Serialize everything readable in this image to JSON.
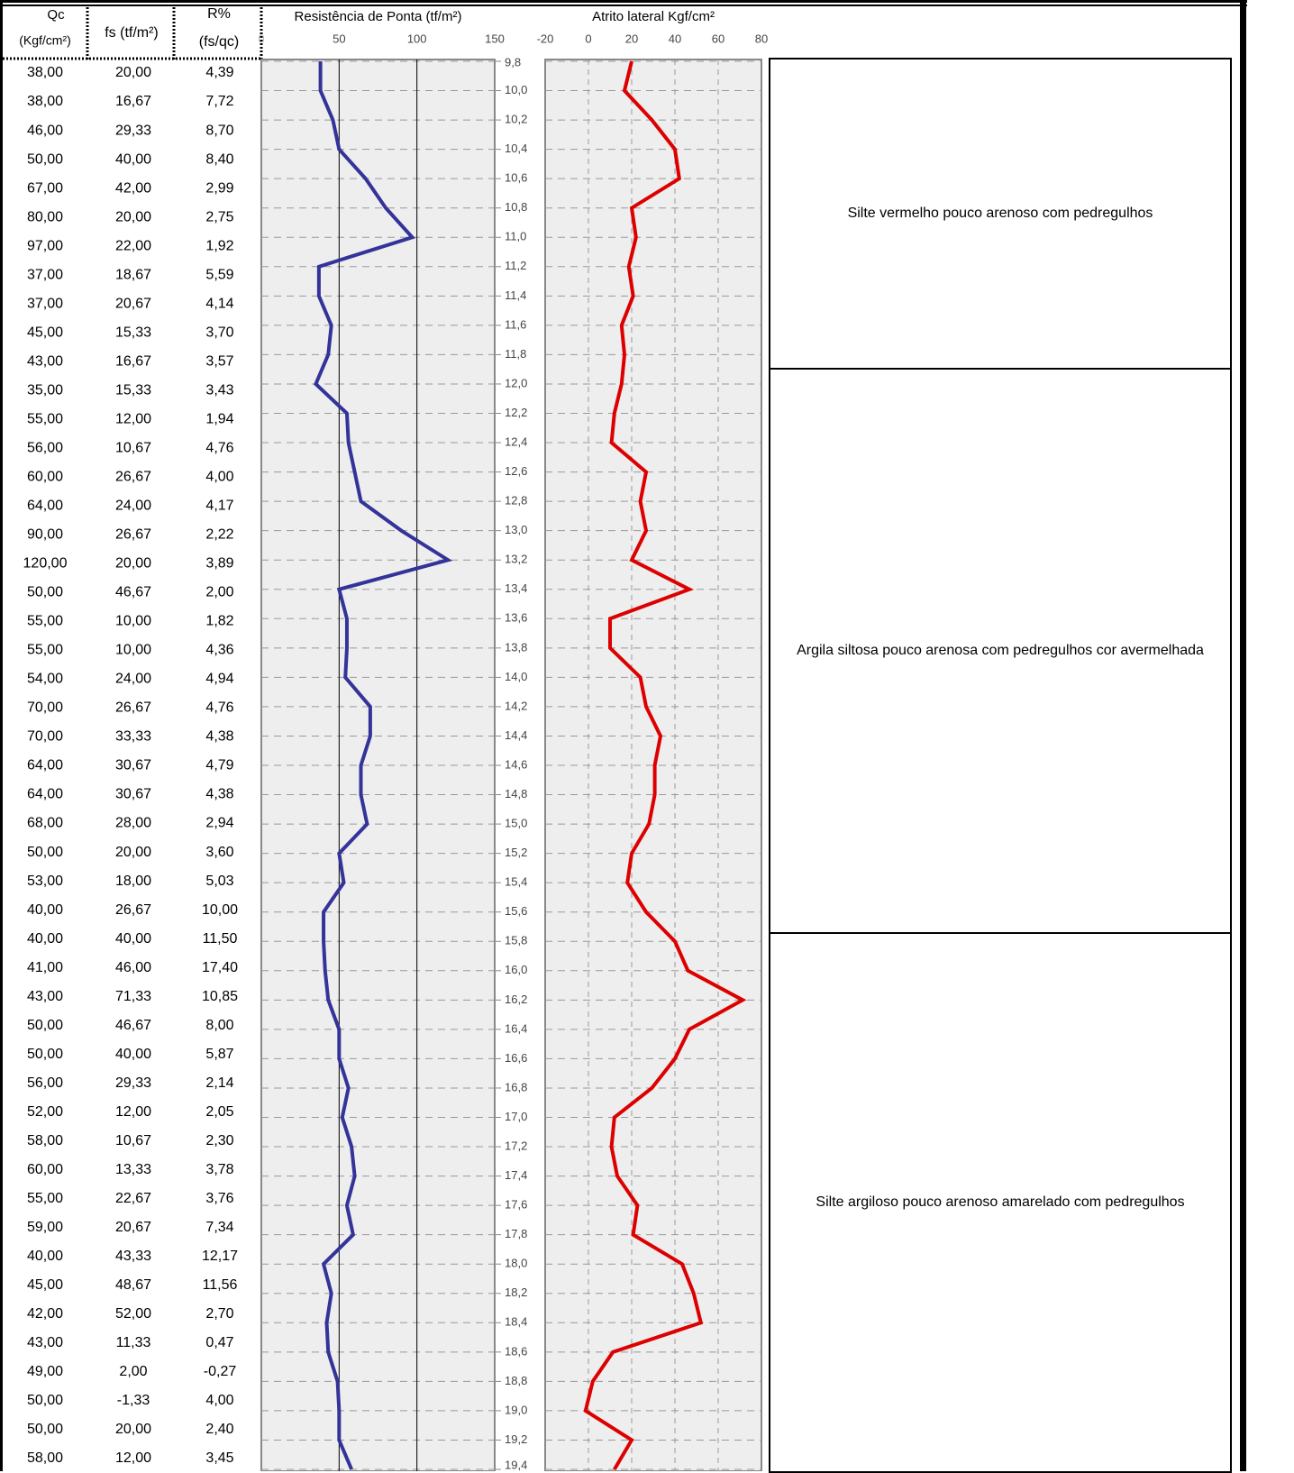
{
  "table": {
    "headers": [
      [
        "Qc",
        "(Kgf/cm²)"
      ],
      [
        "fs (tf/m²)"
      ],
      [
        "R%",
        "(fs/qc)"
      ]
    ],
    "rows": [
      [
        "38,00",
        "20,00",
        "4,39"
      ],
      [
        "38,00",
        "16,67",
        "7,72"
      ],
      [
        "46,00",
        "29,33",
        "8,70"
      ],
      [
        "50,00",
        "40,00",
        "8,40"
      ],
      [
        "67,00",
        "42,00",
        "2,99"
      ],
      [
        "80,00",
        "20,00",
        "2,75"
      ],
      [
        "97,00",
        "22,00",
        "1,92"
      ],
      [
        "37,00",
        "18,67",
        "5,59"
      ],
      [
        "37,00",
        "20,67",
        "4,14"
      ],
      [
        "45,00",
        "15,33",
        "3,70"
      ],
      [
        "43,00",
        "16,67",
        "3,57"
      ],
      [
        "35,00",
        "15,33",
        "3,43"
      ],
      [
        "55,00",
        "12,00",
        "1,94"
      ],
      [
        "56,00",
        "10,67",
        "4,76"
      ],
      [
        "60,00",
        "26,67",
        "4,00"
      ],
      [
        "64,00",
        "24,00",
        "4,17"
      ],
      [
        "90,00",
        "26,67",
        "2,22"
      ],
      [
        "120,00",
        "20,00",
        "3,89"
      ],
      [
        "50,00",
        "46,67",
        "2,00"
      ],
      [
        "55,00",
        "10,00",
        "1,82"
      ],
      [
        "55,00",
        "10,00",
        "4,36"
      ],
      [
        "54,00",
        "24,00",
        "4,94"
      ],
      [
        "70,00",
        "26,67",
        "4,76"
      ],
      [
        "70,00",
        "33,33",
        "4,38"
      ],
      [
        "64,00",
        "30,67",
        "4,79"
      ],
      [
        "64,00",
        "30,67",
        "4,38"
      ],
      [
        "68,00",
        "28,00",
        "2,94"
      ],
      [
        "50,00",
        "20,00",
        "3,60"
      ],
      [
        "53,00",
        "18,00",
        "5,03"
      ],
      [
        "40,00",
        "26,67",
        "10,00"
      ],
      [
        "40,00",
        "40,00",
        "11,50"
      ],
      [
        "41,00",
        "46,00",
        "17,40"
      ],
      [
        "43,00",
        "71,33",
        "10,85"
      ],
      [
        "50,00",
        "46,67",
        "8,00"
      ],
      [
        "50,00",
        "40,00",
        "5,87"
      ],
      [
        "56,00",
        "29,33",
        "2,14"
      ],
      [
        "52,00",
        "12,00",
        "2,05"
      ],
      [
        "58,00",
        "10,67",
        "2,30"
      ],
      [
        "60,00",
        "13,33",
        "3,78"
      ],
      [
        "55,00",
        "22,67",
        "3,76"
      ],
      [
        "59,00",
        "20,67",
        "7,34"
      ],
      [
        "40,00",
        "43,33",
        "12,17"
      ],
      [
        "45,00",
        "48,67",
        "11,56"
      ],
      [
        "42,00",
        "52,00",
        "2,70"
      ],
      [
        "43,00",
        "11,33",
        "0,47"
      ],
      [
        "49,00",
        "2,00",
        "-0,27"
      ],
      [
        "50,00",
        "-1,33",
        "4,00"
      ],
      [
        "50,00",
        "20,00",
        "2,40"
      ],
      [
        "58,00",
        "12,00",
        "3,45"
      ]
    ]
  },
  "chart_data": [
    {
      "type": "line",
      "title": "Resistência de Ponta (tf/m²)",
      "xlim": [
        0,
        150
      ],
      "xticks": [
        0,
        50,
        100,
        150
      ],
      "ylim": [
        9.8,
        19.4
      ],
      "yticks": [
        {
          "value": 9.8,
          "label": "9,8"
        },
        {
          "value": 10,
          "label": "10,0"
        },
        {
          "value": 10.2,
          "label": "10,2"
        },
        {
          "value": 10.4,
          "label": "10,4"
        },
        {
          "value": 10.6,
          "label": "10,6"
        },
        {
          "value": 10.8,
          "label": "10,8"
        },
        {
          "value": 11,
          "label": "11,0"
        },
        {
          "value": 11.2,
          "label": "11,2"
        },
        {
          "value": 11.4,
          "label": "11,4"
        },
        {
          "value": 11.6,
          "label": "11,6"
        },
        {
          "value": 11.8,
          "label": "11,8"
        },
        {
          "value": 12,
          "label": "12,0"
        },
        {
          "value": 12.2,
          "label": "12,2"
        },
        {
          "value": 12.4,
          "label": "12,4"
        },
        {
          "value": 12.6,
          "label": "12,6"
        },
        {
          "value": 12.8,
          "label": "12,8"
        },
        {
          "value": 13,
          "label": "13,0"
        },
        {
          "value": 13.2,
          "label": "13,2"
        },
        {
          "value": 13.4,
          "label": "13,4"
        },
        {
          "value": 13.6,
          "label": "13,6"
        },
        {
          "value": 13.8,
          "label": "13,8"
        },
        {
          "value": 14,
          "label": "14,0"
        },
        {
          "value": 14.2,
          "label": "14,2"
        },
        {
          "value": 14.4,
          "label": "14,4"
        },
        {
          "value": 14.6,
          "label": "14,6"
        },
        {
          "value": 14.8,
          "label": "14,8"
        },
        {
          "value": 15,
          "label": "15,0"
        },
        {
          "value": 15.2,
          "label": "15,2"
        },
        {
          "value": 15.4,
          "label": "15,4"
        },
        {
          "value": 15.6,
          "label": "15,6"
        },
        {
          "value": 15.8,
          "label": "15,8"
        },
        {
          "value": 16,
          "label": "16,0"
        },
        {
          "value": 16.2,
          "label": "16,2"
        },
        {
          "value": 16.4,
          "label": "16,4"
        },
        {
          "value": 16.6,
          "label": "16,6"
        },
        {
          "value": 16.8,
          "label": "16,8"
        },
        {
          "value": 17,
          "label": "17,0"
        },
        {
          "value": 17.2,
          "label": "17,2"
        },
        {
          "value": 17.4,
          "label": "17,4"
        },
        {
          "value": 17.6,
          "label": "17,6"
        },
        {
          "value": 17.8,
          "label": "17,8"
        },
        {
          "value": 18,
          "label": "18,0"
        },
        {
          "value": 18.2,
          "label": "18,2"
        },
        {
          "value": 18.4,
          "label": "18,4"
        },
        {
          "value": 18.6,
          "label": "18,6"
        },
        {
          "value": 18.8,
          "label": "18,8"
        },
        {
          "value": 19,
          "label": "19,0"
        },
        {
          "value": 19.2,
          "label": "19,2"
        },
        {
          "value": 19.4,
          "label": "19,4"
        }
      ],
      "y": [
        9.8,
        10,
        10.2,
        10.4,
        10.6,
        10.8,
        11,
        11.2,
        11.4,
        11.6,
        11.8,
        12,
        12.2,
        12.4,
        12.6,
        12.8,
        13,
        13.2,
        13.4,
        13.6,
        13.8,
        14,
        14.2,
        14.4,
        14.6,
        14.8,
        15,
        15.2,
        15.4,
        15.6,
        15.8,
        16,
        16.2,
        16.4,
        16.6,
        16.8,
        17,
        17.2,
        17.4,
        17.6,
        17.8,
        18,
        18.2,
        18.4,
        18.6,
        18.8,
        19,
        19.2,
        19.4
      ],
      "series": [
        {
          "color": "#333399",
          "values": [
            38,
            38,
            46,
            50,
            67,
            80,
            97,
            37,
            37,
            45,
            43,
            35,
            55,
            56,
            60,
            64,
            90,
            120,
            50,
            55,
            55,
            54,
            70,
            70,
            64,
            64,
            68,
            50,
            53,
            40,
            40,
            41,
            43,
            50,
            50,
            56,
            52,
            58,
            60,
            55,
            59,
            40,
            45,
            42,
            43,
            49,
            50,
            50,
            58
          ]
        }
      ]
    },
    {
      "type": "line",
      "title": "Atrito lateral Kgf/cm²",
      "xlim": [
        -20,
        80
      ],
      "xticks": [
        -20,
        0,
        20,
        40,
        60,
        80
      ],
      "series": [
        {
          "color": "#dd0000",
          "values": [
            20,
            16.67,
            29.33,
            40,
            42,
            20,
            22,
            18.67,
            20.67,
            15.33,
            16.67,
            15.33,
            12,
            10.67,
            26.67,
            24,
            26.67,
            20,
            46.67,
            10,
            10,
            24,
            26.67,
            33.33,
            30.67,
            30.67,
            28,
            20,
            18,
            26.67,
            40,
            46,
            71.33,
            46.67,
            40,
            29.33,
            12,
            10.67,
            13.33,
            22.67,
            20.67,
            43.33,
            48.67,
            52,
            11.33,
            2,
            -1.33,
            20,
            12
          ]
        }
      ]
    }
  ],
  "layers": [
    {
      "description": "Silte vermelho pouco arenoso com pedregulhos"
    },
    {
      "description": "Argila siltosa pouco arenosa com pedregulhos cor avermelhada"
    },
    {
      "description": "Silte argiloso pouco arenoso amarelado com pedregulhos"
    }
  ]
}
